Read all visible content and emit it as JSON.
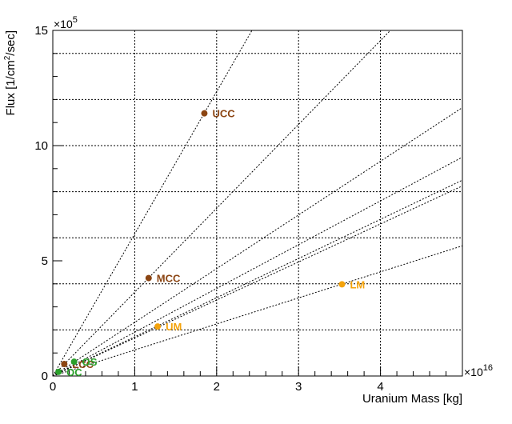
{
  "chart_data": {
    "type": "scatter",
    "title": "",
    "xlabel": "Uranium Mass [kg]",
    "ylabel": "Flux [1/cm²/sec]",
    "ylabel_main": "Flux [1/cm",
    "ylabel_sup": "2",
    "ylabel_tail": "/sec]",
    "x_multiplier": "×10",
    "x_multiplier_exp": "16",
    "y_multiplier": "×10",
    "y_multiplier_exp": "5",
    "xlim": [
      0,
      5
    ],
    "ylim": [
      0,
      15
    ],
    "xticks": [
      0,
      1,
      2,
      3,
      4
    ],
    "yticks": [
      0,
      5,
      10,
      15
    ],
    "grid": true,
    "colors": {
      "crust": "#8b4513",
      "mantle": "#f4a30c",
      "ocean": "#2aa02a",
      "guide_line": "#000000",
      "grid": "#000000"
    },
    "points": [
      {
        "label": "UCC",
        "x": 1.85,
        "y": 11.4,
        "color": "#8b4513"
      },
      {
        "label": "MCC",
        "x": 1.17,
        "y": 4.25,
        "color": "#8b4513"
      },
      {
        "label": "LCC",
        "x": 0.14,
        "y": 0.52,
        "color": "#8b4513"
      },
      {
        "label": "UM",
        "x": 1.28,
        "y": 2.15,
        "color": "#f4a30c"
      },
      {
        "label": "LM",
        "x": 3.53,
        "y": 3.98,
        "color": "#f4a30c"
      },
      {
        "label": "OS",
        "x": 0.26,
        "y": 0.62,
        "color": "#2aa02a"
      },
      {
        "label": "OC",
        "x": 0.07,
        "y": 0.18,
        "color": "#2aa02a"
      }
    ],
    "guide_slopes": [
      6.17,
      3.64,
      2.33,
      1.9,
      1.7,
      1.65,
      1.13
    ]
  }
}
